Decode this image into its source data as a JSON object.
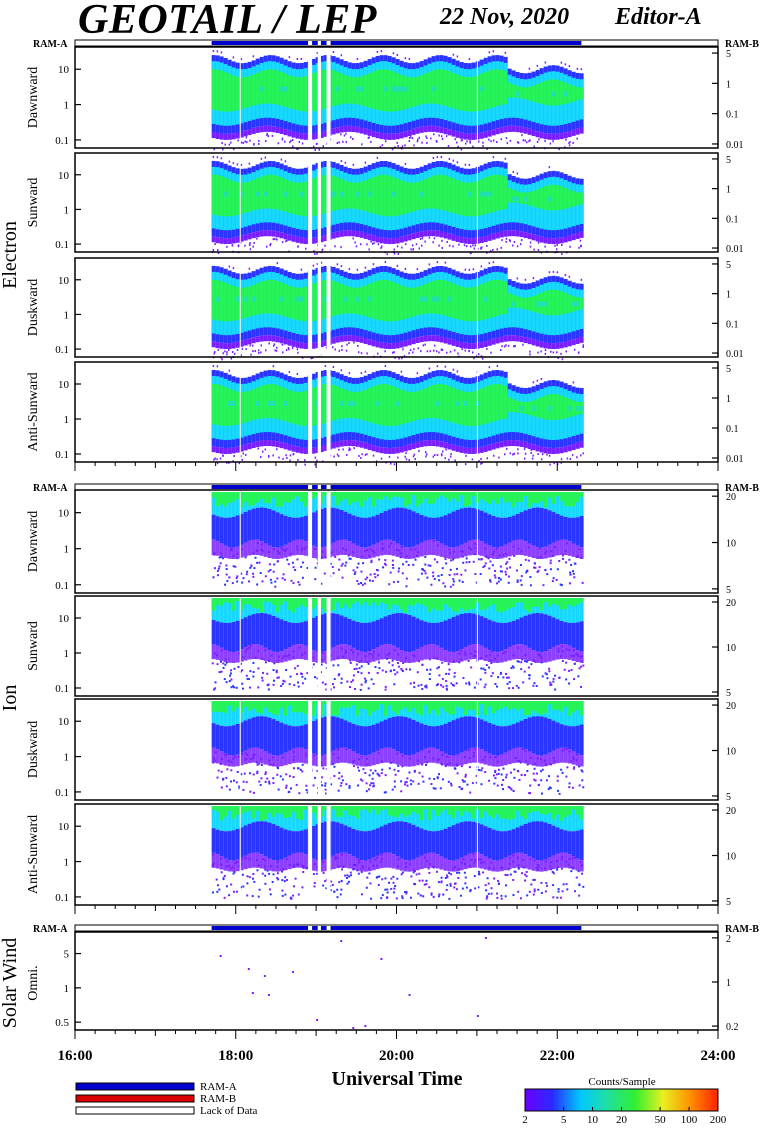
{
  "header": {
    "title": "GEOTAIL / LEP",
    "date": "22 Nov, 2020",
    "editor": "Editor-A"
  },
  "mode_labels": {
    "left": "RAM-A",
    "right": "RAM-B"
  },
  "groups": [
    {
      "name": "Electron",
      "panels": [
        "Dawnward",
        "Sunward",
        "Duskward",
        "Anti-Sunward"
      ]
    },
    {
      "name": "Ion",
      "panels": [
        "Dawnward",
        "Sunward",
        "Duskward",
        "Anti-Sunward"
      ]
    },
    {
      "name": "Solar Wind",
      "panels": [
        "Omni."
      ]
    }
  ],
  "legend": [
    {
      "label": "RAM-A",
      "color": "#0000cc"
    },
    {
      "label": "RAM-B",
      "color": "#dd0000"
    },
    {
      "label": "Lack of Data",
      "color": "#ffffff"
    }
  ],
  "colorbar": {
    "title": "Counts/Sample",
    "ticks": [
      "2",
      "5",
      "10",
      "20",
      "50",
      "100",
      "200"
    ]
  },
  "chart_data": {
    "type": "heatmap",
    "xlabel": "Universal Time",
    "xticks": [
      "16:00",
      "18:00",
      "20:00",
      "22:00",
      "24:00"
    ],
    "xlim_hours": [
      16,
      24
    ],
    "data_span_hours": [
      17.7,
      22.3
    ],
    "gaps_hours": [
      [
        18.9,
        18.95
      ],
      [
        19.02,
        19.06
      ],
      [
        19.13,
        19.18
      ]
    ],
    "electron_left_ticks": [
      "10",
      "1",
      "0.1"
    ],
    "electron_right_ticks": [
      "5",
      "1",
      "0.1",
      "0.01"
    ],
    "ion_left_ticks": [
      "10",
      "1",
      "0.1"
    ],
    "ion_right_ticks": [
      "20",
      "10",
      "5"
    ],
    "solarwind_left_ticks": [
      "5",
      "1",
      "0.5"
    ],
    "solarwind_right_ticks": [
      "2",
      "1",
      "0.2"
    ],
    "colors": {
      "violet": "#7a1fff",
      "blue": "#2a36ff",
      "cyan": "#18d8ff",
      "teal": "#20e0b0",
      "green": "#26f25a",
      "yellow": "#f4ee1e",
      "orange": "#ff8a00",
      "red": "#ff1a00"
    }
  }
}
